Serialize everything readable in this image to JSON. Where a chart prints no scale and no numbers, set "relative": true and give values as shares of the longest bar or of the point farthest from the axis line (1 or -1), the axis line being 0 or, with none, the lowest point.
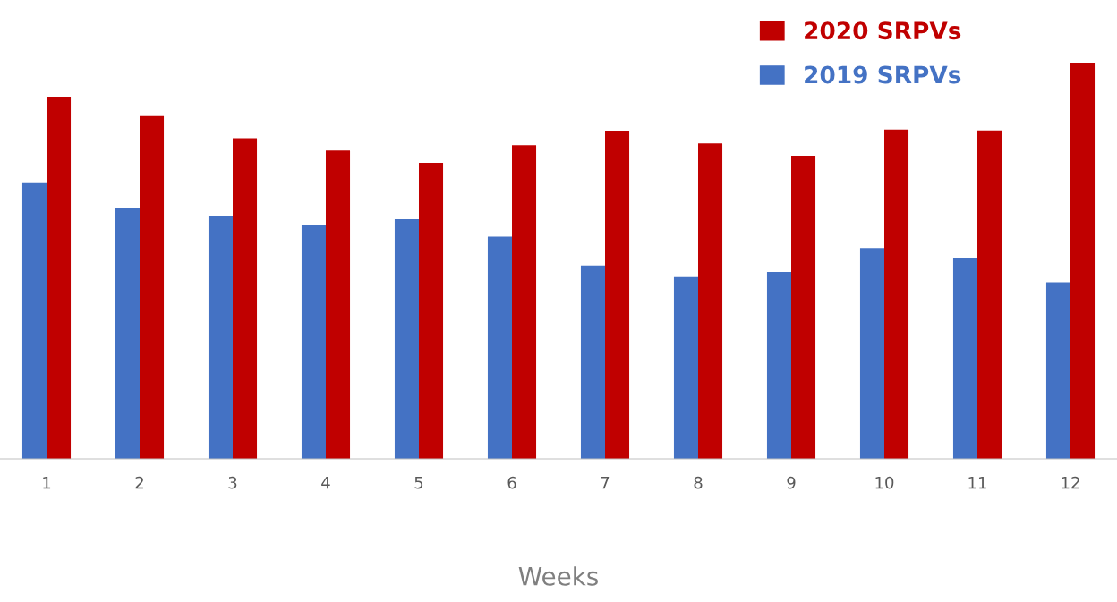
{
  "chart_data": {
    "type": "bar",
    "relative": true,
    "xlabel": "Weeks",
    "categories": [
      "1",
      "2",
      "3",
      "4",
      "5",
      "6",
      "7",
      "8",
      "9",
      "10",
      "11",
      "12"
    ],
    "series": [
      {
        "name": "2019 SRPVs",
        "color": "#4472c4",
        "values": [
          0.696,
          0.634,
          0.614,
          0.59,
          0.605,
          0.561,
          0.488,
          0.459,
          0.472,
          0.532,
          0.508,
          0.446
        ]
      },
      {
        "name": "2020 SRPVs",
        "color": "#c00000",
        "values": [
          0.914,
          0.865,
          0.809,
          0.778,
          0.747,
          0.792,
          0.827,
          0.796,
          0.765,
          0.831,
          0.829,
          1
        ]
      }
    ],
    "legend": "top right",
    "grid": false
  }
}
